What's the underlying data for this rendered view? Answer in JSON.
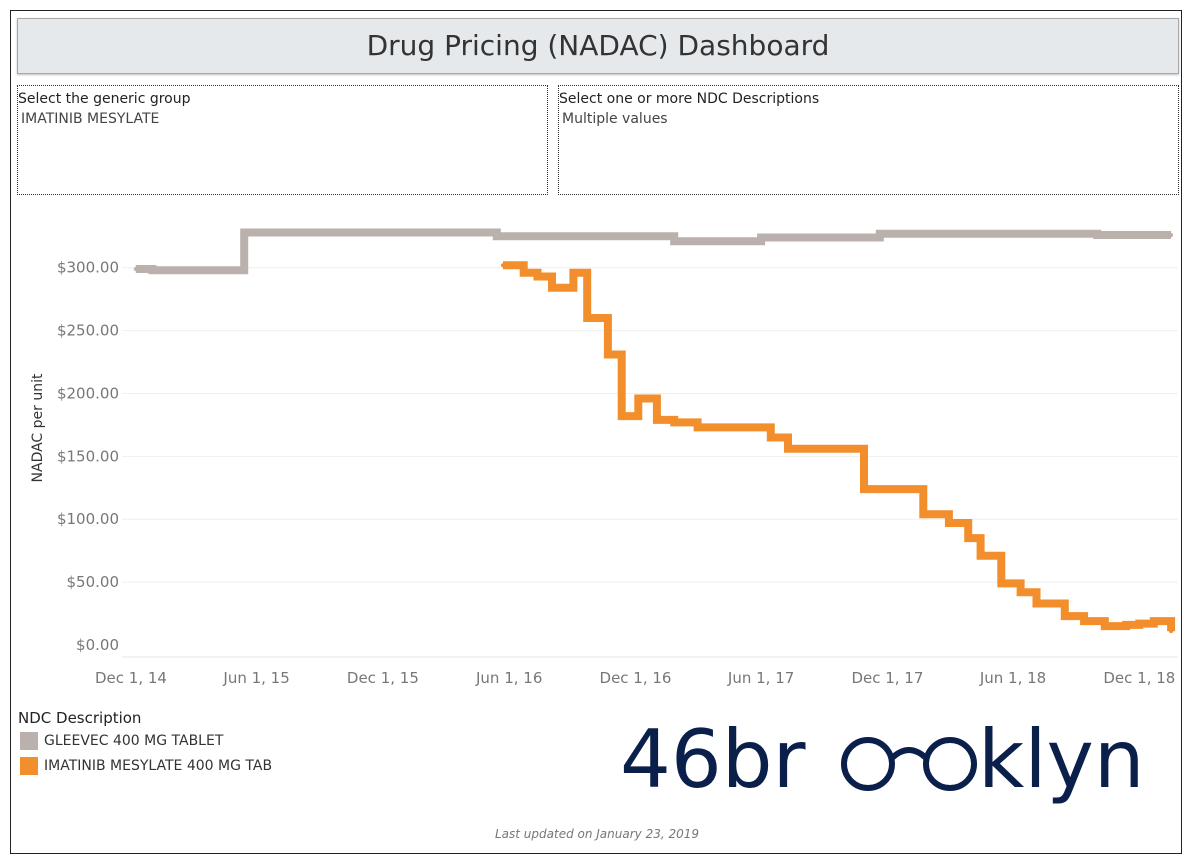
{
  "dashboard": {
    "title": "Drug Pricing (NADAC) Dashboard",
    "last_updated": "Last updated on January 23, 2019"
  },
  "filters": {
    "generic_group": {
      "label": "Select the generic group",
      "value": "IMATINIB MESYLATE"
    },
    "ndc_descriptions": {
      "label": "Select one or more NDC Descriptions",
      "value": "Multiple values"
    }
  },
  "legend": {
    "title": "NDC Description",
    "items": [
      {
        "label": "GLEEVEC 400 MG TABLET",
        "color": "#bab0ac"
      },
      {
        "label": "IMATINIB MESYLATE 400 MG TAB",
        "color": "#f28e2b"
      }
    ]
  },
  "brand": {
    "text": "46brooklyn",
    "color": "#0b1f4b",
    "icon": "eyeglasses-icon"
  },
  "chart_data": {
    "type": "line",
    "ylabel": "NADAC per unit",
    "xlabel": "",
    "ylim": [
      0,
      330
    ],
    "yticks": [
      0,
      50,
      100,
      150,
      200,
      250,
      300
    ],
    "ytick_labels": [
      "$0.00",
      "$50.00",
      "$100.00",
      "$150.00",
      "$200.00",
      "$250.00",
      "$300.00"
    ],
    "xlim": [
      "2014-11-18",
      "2019-01-26"
    ],
    "xticks": [
      "2014-12-01",
      "2015-06-01",
      "2015-12-01",
      "2016-06-01",
      "2016-12-01",
      "2017-06-01",
      "2017-12-01",
      "2018-06-01",
      "2018-12-01"
    ],
    "xtick_labels": [
      "Dec 1, 14",
      "Jun 1, 15",
      "Dec 1, 15",
      "Jun 1, 16",
      "Dec 1, 16",
      "Jun 1, 17",
      "Dec 1, 17",
      "Jun 1, 18",
      "Dec 1, 18"
    ],
    "gridlines": "horizontal",
    "series": [
      {
        "name": "GLEEVEC 400 MG TABLET",
        "color": "#bab0ac",
        "step": true,
        "points": [
          [
            "2014-12-08",
            299
          ],
          [
            "2015-01-01",
            298
          ],
          [
            "2015-05-14",
            328
          ],
          [
            "2016-05-14",
            325
          ],
          [
            "2017-01-26",
            321
          ],
          [
            "2017-06-01",
            324
          ],
          [
            "2017-11-20",
            327
          ],
          [
            "2018-10-01",
            326
          ],
          [
            "2019-01-16",
            326
          ]
        ]
      },
      {
        "name": "IMATINIB MESYLATE 400 MG TAB",
        "color": "#f28e2b",
        "step": true,
        "points": [
          [
            "2016-05-23",
            302
          ],
          [
            "2016-06-22",
            296
          ],
          [
            "2016-07-12",
            293
          ],
          [
            "2016-08-02",
            284
          ],
          [
            "2016-09-02",
            296
          ],
          [
            "2016-09-22",
            260
          ],
          [
            "2016-10-22",
            231
          ],
          [
            "2016-11-11",
            182
          ],
          [
            "2016-12-05",
            196
          ],
          [
            "2017-01-01",
            179
          ],
          [
            "2017-01-26",
            177
          ],
          [
            "2017-03-01",
            173
          ],
          [
            "2017-06-15",
            165
          ],
          [
            "2017-07-10",
            156
          ],
          [
            "2017-10-28",
            124
          ],
          [
            "2018-01-22",
            104
          ],
          [
            "2018-02-28",
            97
          ],
          [
            "2018-03-28",
            85
          ],
          [
            "2018-04-15",
            71
          ],
          [
            "2018-05-15",
            49
          ],
          [
            "2018-06-12",
            42
          ],
          [
            "2018-07-05",
            33
          ],
          [
            "2018-08-15",
            23
          ],
          [
            "2018-09-12",
            19
          ],
          [
            "2018-10-12",
            15
          ],
          [
            "2018-11-12",
            16
          ],
          [
            "2018-12-01",
            17
          ],
          [
            "2018-12-22",
            19
          ],
          [
            "2019-01-10",
            19
          ],
          [
            "2019-01-16",
            11
          ]
        ]
      }
    ]
  }
}
